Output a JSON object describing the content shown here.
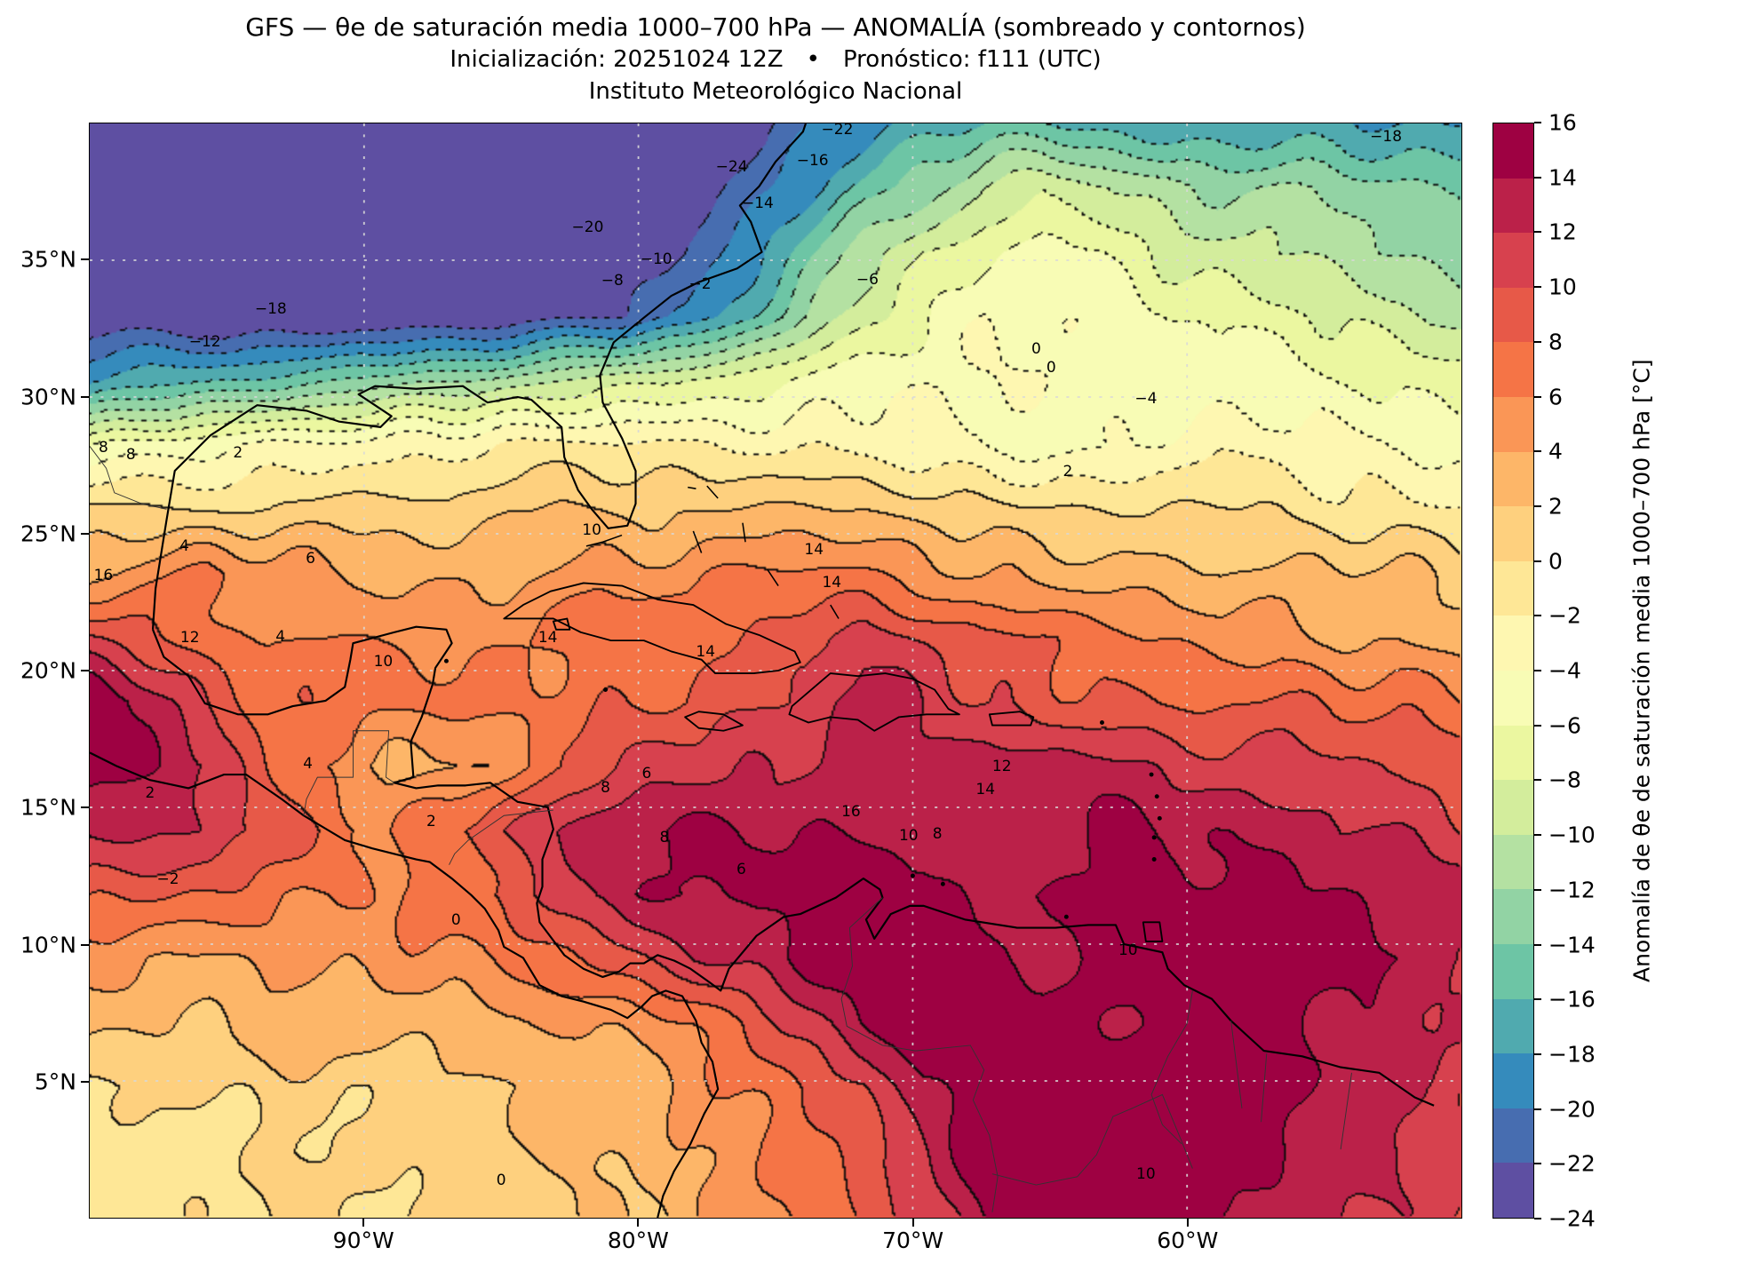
{
  "header": {
    "title": "GFS — θe de saturación media 1000–700 hPa — ANOMALÍA (sombreado y contornos)",
    "subtitle": "Inicialización: 20251024 12Z  •  Pronóstico: f111 (UTC)",
    "org": "Instituto Meteorológico Nacional"
  },
  "chart_data": {
    "type": "heatmap",
    "title": "GFS — θe de saturación media 1000–700 hPa — ANOMALÍA (sombreado y contornos)",
    "subtitle": "Inicialización: 20251024 12Z • Pronóstico: f111 (UTC)",
    "source": "Instituto Meteorológico Nacional",
    "x_ticks": [
      {
        "label": "90°W",
        "f": 0.2
      },
      {
        "label": "80°W",
        "f": 0.4
      },
      {
        "label": "70°W",
        "f": 0.6
      },
      {
        "label": "60°W",
        "f": 0.8
      }
    ],
    "y_ticks": [
      {
        "label": "35°N",
        "f": 0.125
      },
      {
        "label": "30°N",
        "f": 0.25
      },
      {
        "label": "25°N",
        "f": 0.375
      },
      {
        "label": "20°N",
        "f": 0.5
      },
      {
        "label": "15°N",
        "f": 0.625
      },
      {
        "label": "10°N",
        "f": 0.75
      },
      {
        "label": "5°N",
        "f": 0.875
      }
    ],
    "extent": {
      "lon_west": -100,
      "lon_east": -50,
      "lat_south": 0,
      "lat_north": 40
    },
    "colorbar": {
      "label": "Anomalía de θe de saturación media 1000–700 hPa [°C]",
      "vmin": -24,
      "vmax": 16,
      "step": 2,
      "tick_labels": [
        "16",
        "14",
        "12",
        "10",
        "8",
        "6",
        "4",
        "2",
        "0",
        "−2",
        "−4",
        "−6",
        "−8",
        "−10",
        "−12",
        "−14",
        "−16",
        "−18",
        "−20",
        "−22",
        "−24"
      ],
      "colors": [
        "#5e4fa2",
        "#476db0",
        "#358bbc",
        "#50aaaf",
        "#6dc5a5",
        "#92d3a4",
        "#b4e1a2",
        "#d3ed9c",
        "#ebf7a0",
        "#f8fcb5",
        "#fef7b1",
        "#fee796",
        "#fed07e",
        "#fdb668",
        "#fa9656",
        "#f57446",
        "#e75948",
        "#d7414e",
        "#bb2149",
        "#9e0142"
      ]
    },
    "contours": {
      "interval": 2,
      "negative_style": "dotted",
      "positive_style": "solid"
    },
    "grid": {
      "nx": 24,
      "ny": 18,
      "note": "anomaly values in °C on a lon 100W-50W x lat 40N-0N grid, row 0 = north",
      "values": [
        [
          -24,
          -24,
          -24,
          -24,
          -24,
          -24,
          -24,
          -24,
          -24,
          -24,
          -24,
          -23,
          -21,
          -19,
          -17,
          -16,
          -16,
          -17,
          -17,
          -18,
          -17,
          -17,
          -18,
          -18
        ],
        [
          -24,
          -24,
          -24,
          -24,
          -24,
          -24,
          -24,
          -24,
          -24,
          -24,
          -23,
          -22,
          -19,
          -16,
          -13,
          -10,
          -8,
          -9,
          -11,
          -12,
          -12,
          -13,
          -14,
          -15
        ],
        [
          -24,
          -24,
          -24,
          -24,
          -24,
          -24,
          -24,
          -24,
          -24,
          -24,
          -22,
          -19,
          -15,
          -11,
          -8,
          -6,
          -5,
          -6,
          -8,
          -9,
          -10,
          -11,
          -12,
          -13
        ],
        [
          -24,
          -24,
          -24,
          -24,
          -24,
          -24,
          -24,
          -24,
          -23,
          -22,
          -20,
          -16,
          -12,
          -8,
          -6,
          -4,
          -4,
          -5,
          -6,
          -7,
          -7,
          -8,
          -9,
          -10
        ],
        [
          -18,
          -17,
          -16,
          -15,
          -14,
          -13,
          -12,
          -11,
          -10,
          -9,
          -8,
          -7,
          -6,
          -5,
          -4,
          -4,
          -4,
          -5,
          -5,
          -5,
          -5,
          -6,
          -6,
          -7
        ],
        [
          -6,
          -5,
          -4,
          -3,
          -3,
          -3,
          -3,
          -2,
          -2,
          -2,
          -2,
          -2,
          -2,
          -2,
          -3,
          -4,
          -5,
          -5,
          -4,
          -3,
          -3,
          -3,
          -4,
          -4
        ],
        [
          0,
          0,
          0,
          0,
          1,
          1,
          1,
          2,
          2,
          2,
          2,
          2,
          2,
          2,
          1,
          0,
          0,
          0,
          0,
          0,
          0,
          -1,
          -1,
          -2
        ],
        [
          3,
          5,
          6,
          5,
          4,
          4,
          4,
          4,
          5,
          5,
          5,
          6,
          6,
          6,
          5,
          4,
          4,
          3,
          3,
          2,
          2,
          2,
          2,
          1
        ],
        [
          10,
          8,
          7,
          6,
          6,
          6,
          6,
          6,
          6,
          7,
          7,
          8,
          9,
          11,
          10,
          8,
          8,
          7,
          6,
          5,
          5,
          4,
          4,
          3
        ],
        [
          16,
          13,
          9,
          7,
          7,
          7,
          7,
          7,
          7,
          8,
          8,
          9,
          10,
          13,
          12,
          10,
          9,
          9,
          8,
          8,
          8,
          7,
          7,
          6
        ],
        [
          16,
          14,
          12,
          8,
          6,
          3,
          3,
          5,
          8,
          10,
          11,
          12,
          12,
          12,
          13,
          14,
          13,
          13,
          12,
          11,
          11,
          10,
          10,
          9
        ],
        [
          12,
          12,
          12,
          10,
          8,
          6,
          8,
          10,
          12,
          13,
          14,
          14,
          14,
          14,
          14,
          13,
          13,
          14,
          14,
          13,
          13,
          12,
          12,
          11
        ],
        [
          9,
          8,
          8,
          7,
          6,
          6,
          7,
          9,
          11,
          13,
          14,
          14,
          15,
          15,
          15,
          14,
          14,
          15,
          15,
          15,
          14,
          14,
          13,
          13
        ],
        [
          5,
          4,
          4,
          5,
          5,
          5,
          5,
          6,
          7,
          9,
          11,
          13,
          15,
          16,
          16,
          15,
          13,
          14,
          15,
          16,
          16,
          15,
          14,
          13
        ],
        [
          2,
          2,
          2,
          3,
          3,
          3,
          3,
          4,
          4,
          5,
          6,
          8,
          11,
          14,
          16,
          16,
          15,
          14,
          14,
          15,
          15,
          14,
          13,
          12
        ],
        [
          -1,
          0,
          0,
          1,
          1,
          1,
          2,
          2,
          3,
          3,
          4,
          6,
          8,
          10,
          14,
          16,
          16,
          16,
          16,
          15,
          14,
          13,
          12,
          11
        ],
        [
          -1,
          -1,
          0,
          0,
          0,
          1,
          1,
          2,
          2,
          3,
          4,
          5,
          7,
          9,
          12,
          15,
          16,
          16,
          16,
          15,
          14,
          13,
          12,
          11
        ],
        [
          -2,
          -1,
          -1,
          0,
          0,
          0,
          1,
          1,
          2,
          2,
          3,
          5,
          6,
          8,
          11,
          14,
          16,
          16,
          15,
          14,
          13,
          12,
          11,
          10
        ]
      ]
    },
    "contour_labels": [
      {
        "t": "−18",
        "x": 0.945,
        "y": 0.012
      },
      {
        "t": "−22",
        "x": 0.545,
        "y": 0.006
      },
      {
        "t": "−24",
        "x": 0.468,
        "y": 0.04
      },
      {
        "t": "−16",
        "x": 0.527,
        "y": 0.034
      },
      {
        "t": "−14",
        "x": 0.487,
        "y": 0.073
      },
      {
        "t": "−20",
        "x": 0.363,
        "y": 0.095
      },
      {
        "t": "−10",
        "x": 0.413,
        "y": 0.124
      },
      {
        "t": "−8",
        "x": 0.381,
        "y": 0.144
      },
      {
        "t": "−2",
        "x": 0.445,
        "y": 0.147
      },
      {
        "t": "−6",
        "x": 0.567,
        "y": 0.143
      },
      {
        "t": "−4",
        "x": 0.77,
        "y": 0.252
      },
      {
        "t": "−18",
        "x": 0.132,
        "y": 0.17
      },
      {
        "t": "−12",
        "x": 0.084,
        "y": 0.2
      },
      {
        "t": "2",
        "x": 0.108,
        "y": 0.301
      },
      {
        "t": "0",
        "x": 0.69,
        "y": 0.206
      },
      {
        "t": "0",
        "x": 0.701,
        "y": 0.223
      },
      {
        "t": "2",
        "x": 0.713,
        "y": 0.318
      },
      {
        "t": "8",
        "x": 0.01,
        "y": 0.296
      },
      {
        "t": "8",
        "x": 0.03,
        "y": 0.303
      },
      {
        "t": "16",
        "x": 0.01,
        "y": 0.413
      },
      {
        "t": "4",
        "x": 0.069,
        "y": 0.386
      },
      {
        "t": "6",
        "x": 0.161,
        "y": 0.398
      },
      {
        "t": "12",
        "x": 0.073,
        "y": 0.47
      },
      {
        "t": "4",
        "x": 0.139,
        "y": 0.469
      },
      {
        "t": "10",
        "x": 0.214,
        "y": 0.492
      },
      {
        "t": "14",
        "x": 0.334,
        "y": 0.47
      },
      {
        "t": "10",
        "x": 0.366,
        "y": 0.372
      },
      {
        "t": "14",
        "x": 0.449,
        "y": 0.483
      },
      {
        "t": "14",
        "x": 0.528,
        "y": 0.39
      },
      {
        "t": "14",
        "x": 0.541,
        "y": 0.42
      },
      {
        "t": "4",
        "x": 0.159,
        "y": 0.585
      },
      {
        "t": "2",
        "x": 0.044,
        "y": 0.612
      },
      {
        "t": "2",
        "x": 0.249,
        "y": 0.638
      },
      {
        "t": "8",
        "x": 0.376,
        "y": 0.607
      },
      {
        "t": "6",
        "x": 0.406,
        "y": 0.594
      },
      {
        "t": "8",
        "x": 0.419,
        "y": 0.653
      },
      {
        "t": "16",
        "x": 0.555,
        "y": 0.629
      },
      {
        "t": "12",
        "x": 0.665,
        "y": 0.588
      },
      {
        "t": "14",
        "x": 0.653,
        "y": 0.609
      },
      {
        "t": "10",
        "x": 0.597,
        "y": 0.651
      },
      {
        "t": "8",
        "x": 0.618,
        "y": 0.649
      },
      {
        "t": "6",
        "x": 0.475,
        "y": 0.682
      },
      {
        "t": "−2",
        "x": 0.057,
        "y": 0.691
      },
      {
        "t": "0",
        "x": 0.267,
        "y": 0.728
      },
      {
        "t": "10",
        "x": 0.757,
        "y": 0.756
      },
      {
        "t": "0",
        "x": 0.3,
        "y": 0.966
      },
      {
        "t": "10",
        "x": 0.77,
        "y": 0.96
      }
    ]
  }
}
